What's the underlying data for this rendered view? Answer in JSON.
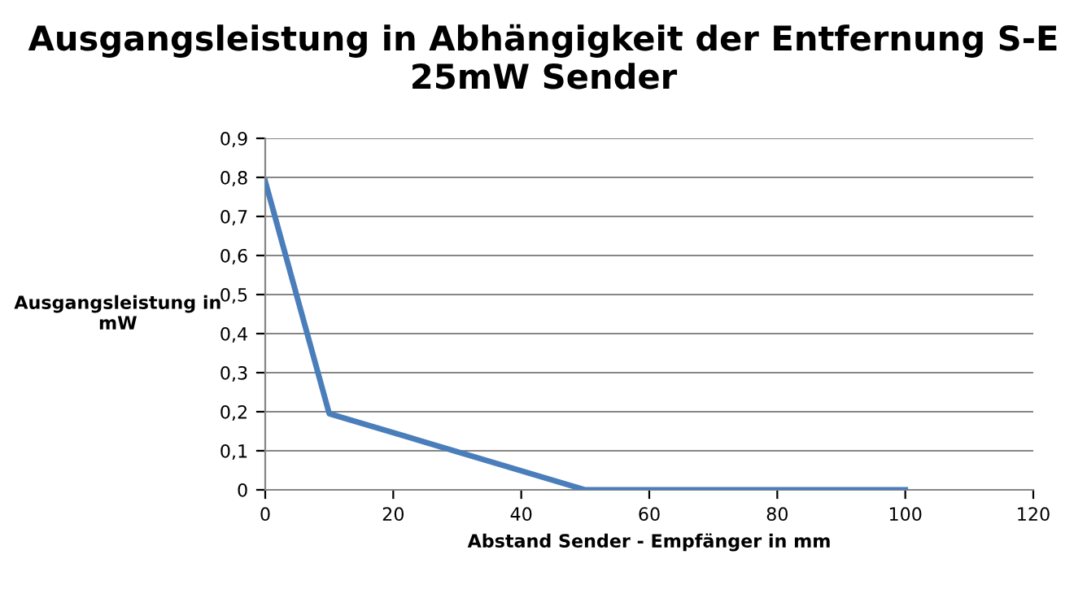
{
  "chart_data": {
    "type": "line",
    "title": "Ausgangsleistung in Abhängigkeit der Entfernung S-E\n25mW Sender",
    "xlabel": "Abstand Sender - Empfänger in mm",
    "ylabel": "Ausgangsleistung in\nmW",
    "x": [
      0,
      10,
      50,
      100
    ],
    "series": [
      {
        "color": "#4a7ebb",
        "values": [
          0.79,
          0.195,
          0,
          0
        ]
      }
    ],
    "xlim": [
      0,
      120
    ],
    "xticks": [
      0,
      20,
      40,
      60,
      80,
      100,
      120
    ],
    "ylim": [
      0,
      0.9
    ],
    "yticks": [
      0,
      {
        "value": 0.1,
        "label": "0,1"
      },
      {
        "value": 0.2,
        "label": "0,2"
      },
      {
        "value": 0.3,
        "label": "0,3"
      },
      {
        "value": 0.4,
        "label": "0,4"
      },
      {
        "value": 0.5,
        "label": "0,5"
      },
      {
        "value": 0.6,
        "label": "0,6"
      },
      {
        "value": 0.7,
        "label": "0,7"
      },
      {
        "value": 0.8,
        "label": "0,8"
      },
      {
        "value": 0.9,
        "label": "0,9"
      }
    ],
    "grid": "y",
    "marker": "none",
    "line_style": "solid"
  }
}
